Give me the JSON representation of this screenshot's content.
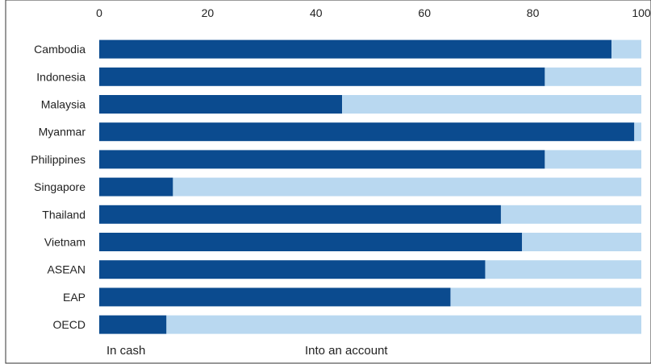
{
  "chart_data": {
    "type": "bar",
    "orientation": "horizontal",
    "stacked": true,
    "categories": [
      "Cambodia",
      "Indonesia",
      "Malaysia",
      "Myanmar",
      "Philippines",
      "Singapore",
      "Thailand",
      "Vietnam",
      "ASEAN",
      "EAP",
      "OECD"
    ],
    "series": [
      {
        "name": "In cash",
        "values": [
          94.5,
          82.2,
          44.8,
          98.7,
          82.2,
          13.6,
          74.1,
          78.0,
          71.2,
          64.8,
          12.4
        ]
      },
      {
        "name": "Into an account",
        "values": [
          5.5,
          17.8,
          55.2,
          1.3,
          17.8,
          86.4,
          25.9,
          22.0,
          28.8,
          35.2,
          87.6
        ]
      }
    ],
    "xlim": [
      0,
      100
    ],
    "xticks": [
      "0",
      "20",
      "40",
      "60",
      "80",
      "100"
    ],
    "xaxis_position": "top",
    "grid": false,
    "legend_position": "bottom-left",
    "colors": {
      "In cash": "#0b4b8f",
      "Into an account": "#b9d8f0"
    }
  }
}
